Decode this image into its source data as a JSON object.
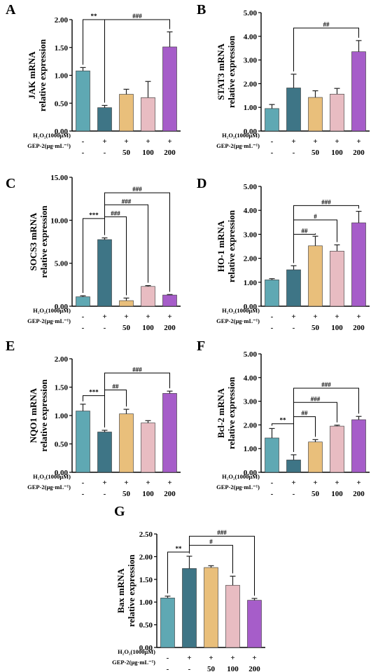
{
  "figure": {
    "row_labels": {
      "h2o2": "H₂O₂(1000μM)",
      "gep": "GEP-2(μg·mL⁻¹)"
    },
    "treatment_symbols": {
      "h2o2": [
        "-",
        "+",
        "+",
        "+",
        "+"
      ],
      "gep": [
        "-",
        "-",
        "50",
        "100",
        "200"
      ]
    },
    "colors": [
      "#5fa8b3",
      "#3e7586",
      "#e9bf7b",
      "#e8bcc2",
      "#a65dc9"
    ]
  },
  "chart_data": [
    {
      "type": "bar",
      "panel": "A",
      "ylabel": [
        "JAK mRNA",
        "relative expression"
      ],
      "ylim": [
        0,
        2.0
      ],
      "ticks": [
        "0.00",
        "0.50",
        "1.00",
        "1.50",
        "2.00"
      ],
      "tickvals": [
        0,
        0.5,
        1.0,
        1.5,
        2.0
      ],
      "values": [
        1.08,
        0.42,
        0.66,
        0.6,
        1.51
      ],
      "errors": [
        0.06,
        0.04,
        0.09,
        0.29,
        0.27
      ],
      "brackets": [
        {
          "from": 0,
          "to": 1,
          "label": "**",
          "level": 2.0
        },
        {
          "from": 1,
          "to": 4,
          "label": "###",
          "level": 2.0
        }
      ]
    },
    {
      "type": "bar",
      "panel": "B",
      "ylabel": [
        "STAT3 mRNA",
        "relative expression"
      ],
      "ylim": [
        0,
        5.0
      ],
      "ticks": [
        "0.00",
        "1.00",
        "2.00",
        "3.00",
        "4.00",
        "5.00"
      ],
      "tickvals": [
        0,
        1,
        2,
        3,
        4,
        5
      ],
      "values": [
        0.95,
        1.82,
        1.42,
        1.56,
        3.35
      ],
      "errors": [
        0.17,
        0.58,
        0.28,
        0.24,
        0.47
      ],
      "brackets": [
        {
          "from": 1,
          "to": 4,
          "label": "##",
          "level": 4.35
        }
      ]
    },
    {
      "type": "bar",
      "panel": "C",
      "ylabel": [
        "SOCS3 mRNA",
        "relative expression"
      ],
      "ylim": [
        0,
        15.0
      ],
      "ticks": [
        "0.00",
        "5.00",
        "10.00",
        "15.00"
      ],
      "tickvals": [
        0,
        5,
        10,
        15
      ],
      "values": [
        1.1,
        7.75,
        0.65,
        2.3,
        1.3
      ],
      "errors": [
        0.12,
        0.2,
        0.3,
        0.1,
        0.06
      ],
      "brackets": [
        {
          "from": 0,
          "to": 1,
          "label": "***",
          "level": 10.2
        },
        {
          "from": 1,
          "to": 2,
          "label": "###",
          "level": 10.4
        },
        {
          "from": 1,
          "to": 3,
          "label": "###",
          "level": 11.8
        },
        {
          "from": 1,
          "to": 4,
          "label": "###",
          "level": 13.2
        }
      ]
    },
    {
      "type": "bar",
      "panel": "D",
      "ylabel": [
        "HO-1 mRNA",
        "relative expression"
      ],
      "ylim": [
        0,
        5.0
      ],
      "ticks": [
        "0.00",
        "1.00",
        "2.00",
        "3.00",
        "4.00",
        "5.00"
      ],
      "tickvals": [
        0,
        1,
        2,
        3,
        4,
        5
      ],
      "values": [
        1.1,
        1.52,
        2.52,
        2.3,
        3.48
      ],
      "errors": [
        0.05,
        0.17,
        0.4,
        0.26,
        0.48
      ],
      "brackets": [
        {
          "from": 1,
          "to": 2,
          "label": "##",
          "level": 3.0
        },
        {
          "from": 1,
          "to": 3,
          "label": "#",
          "level": 3.6
        },
        {
          "from": 1,
          "to": 4,
          "label": "###",
          "level": 4.2
        }
      ]
    },
    {
      "type": "bar",
      "panel": "E",
      "ylabel": [
        "NQO1 mRNA",
        "relative expression"
      ],
      "ylim": [
        0,
        2.0
      ],
      "ticks": [
        "0.00",
        "0.50",
        "1.00",
        "1.50",
        "2.00"
      ],
      "tickvals": [
        0,
        0.5,
        1.0,
        1.5,
        2.0
      ],
      "values": [
        1.08,
        0.71,
        1.03,
        0.87,
        1.39
      ],
      "errors": [
        0.12,
        0.03,
        0.08,
        0.04,
        0.04
      ],
      "brackets": [
        {
          "from": 0,
          "to": 1,
          "label": "***",
          "level": 1.35
        },
        {
          "from": 1,
          "to": 2,
          "label": "##",
          "level": 1.45
        },
        {
          "from": 1,
          "to": 4,
          "label": "###",
          "level": 1.75
        }
      ]
    },
    {
      "type": "bar",
      "panel": "F",
      "ylabel": [
        "Bcl-2 mRNA",
        "relative expression"
      ],
      "ylim": [
        0,
        5.0
      ],
      "ticks": [
        "0.00",
        "1.00",
        "2.00",
        "3.00",
        "4.00",
        "5.00"
      ],
      "tickvals": [
        0,
        1,
        2,
        3,
        4,
        5
      ],
      "values": [
        1.45,
        0.52,
        1.28,
        1.95,
        2.22
      ],
      "errors": [
        0.4,
        0.22,
        0.1,
        0.04,
        0.14
      ],
      "brackets": [
        {
          "from": 0,
          "to": 1,
          "label": "**",
          "level": 2.05
        },
        {
          "from": 1,
          "to": 2,
          "label": "##",
          "level": 2.35
        },
        {
          "from": 1,
          "to": 3,
          "label": "###",
          "level": 2.95
        },
        {
          "from": 1,
          "to": 4,
          "label": "###",
          "level": 3.55
        }
      ]
    },
    {
      "type": "bar",
      "panel": "G",
      "ylabel": [
        "Bax mRNA",
        "relative expression"
      ],
      "ylim": [
        0,
        2.5
      ],
      "ticks": [
        "0.00",
        "0.50",
        "1.00",
        "1.50",
        "2.00",
        "2.50"
      ],
      "tickvals": [
        0,
        0.5,
        1.0,
        1.5,
        2.0,
        2.5
      ],
      "values": [
        1.09,
        1.74,
        1.76,
        1.37,
        1.04
      ],
      "errors": [
        0.04,
        0.27,
        0.04,
        0.2,
        0.04
      ],
      "brackets": [
        {
          "from": 0,
          "to": 1,
          "label": "**",
          "level": 2.1
        },
        {
          "from": 1,
          "to": 3,
          "label": "#",
          "level": 2.25
        },
        {
          "from": 1,
          "to": 4,
          "label": "###",
          "level": 2.45
        }
      ]
    }
  ]
}
